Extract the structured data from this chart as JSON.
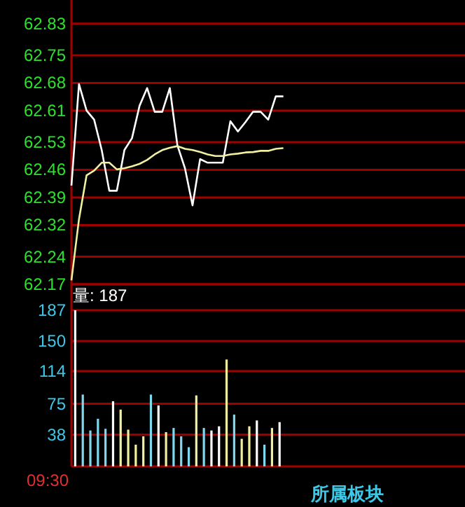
{
  "chart_data": [
    {
      "type": "line",
      "categories": [
        null,
        null,
        null,
        null,
        null,
        null,
        null,
        null,
        null,
        null,
        null,
        null,
        null,
        null,
        null,
        null,
        null,
        null,
        null,
        null,
        null,
        null,
        null,
        null,
        null,
        null,
        null,
        null,
        null,
        null,
        null,
        null,
        null,
        null,
        null,
        null,
        null,
        null,
        null,
        null,
        null,
        null,
        null,
        null,
        null,
        null,
        null,
        null,
        null,
        null,
        null,
        null,
        null
      ],
      "series": [
        {
          "color": "#ffffff",
          "values": [
            62.42,
            62.677,
            62.61,
            62.587,
            62.51,
            62.407,
            62.407,
            62.51,
            62.54,
            62.622,
            62.667,
            62.607,
            62.607,
            62.667,
            62.522,
            62.464,
            62.37,
            62.487,
            62.478,
            62.478,
            62.478,
            62.583,
            62.557,
            62.581,
            62.607,
            62.607,
            62.587,
            62.646,
            62.646,
            null,
            null,
            null,
            null,
            null,
            null,
            null,
            null,
            null,
            null,
            null,
            null,
            null,
            null,
            null,
            null,
            null,
            null,
            null,
            null,
            null,
            null,
            null,
            null
          ]
        },
        {
          "color": "#f0f0a0",
          "values": [
            62.18,
            62.335,
            62.446,
            62.458,
            62.478,
            62.478,
            62.461,
            62.464,
            62.469,
            62.475,
            62.485,
            62.499,
            62.51,
            62.516,
            62.52,
            62.513,
            62.51,
            62.505,
            62.499,
            62.495,
            62.495,
            62.499,
            62.501,
            62.504,
            62.505,
            62.508,
            62.508,
            62.513,
            62.515,
            null,
            null,
            null,
            null,
            null,
            null,
            null,
            null,
            null,
            null,
            null,
            null,
            null,
            null,
            null,
            null,
            null,
            null,
            null,
            null,
            null,
            null,
            null,
            null
          ]
        }
      ],
      "ylim": [
        62.17,
        62.89
      ],
      "yticks": [
        62.17,
        62.24,
        62.32,
        62.39,
        62.46,
        62.53,
        62.61,
        62.68,
        62.75,
        62.83
      ],
      "grid": "y"
    },
    {
      "type": "bar",
      "categories": [
        null,
        null,
        null,
        null,
        null,
        null,
        null,
        null,
        null,
        null,
        null,
        null,
        null,
        null,
        null,
        null,
        null,
        null,
        null,
        null,
        null,
        null,
        null,
        null,
        null,
        null,
        null,
        null,
        null,
        null,
        null,
        null,
        null,
        null,
        null,
        null,
        null,
        null,
        null,
        null,
        null,
        null,
        null,
        null,
        null,
        null,
        null,
        null,
        null,
        null,
        null,
        null
      ],
      "values": [
        187,
        86,
        43,
        57,
        45,
        78,
        68,
        44,
        26,
        36,
        86,
        73,
        41,
        46,
        36,
        23,
        85,
        46,
        43,
        48,
        128,
        62,
        33,
        48,
        55,
        26,
        46,
        53,
        null,
        null,
        null,
        null,
        null,
        null,
        null,
        null,
        null,
        null,
        null,
        null,
        null,
        null,
        null,
        null,
        null,
        null,
        null,
        null,
        null,
        null,
        null,
        null
      ],
      "colors": [
        "#ffffff",
        "#7fd8ec",
        "#7fd8ec",
        "#7fd8ec",
        "#7fd8ec",
        "#ffffff",
        "#f0f0a0",
        "#f0f0a0",
        "#f0f0a0",
        "#f0f0a0",
        "#7fd8ec",
        "#ffffff",
        "#f0f0a0",
        "#7fd8ec",
        "#7fd8ec",
        "#7fd8ec",
        "#f0f0a0",
        "#7fd8ec",
        "#ffffff",
        "#ffffff",
        "#f0f0a0",
        "#7fd8ec",
        "#f0f0a0",
        "#f0f0a0",
        "#ffffff",
        "#7fd8ec",
        "#f0f0a0",
        "#ffffff",
        null,
        null,
        null,
        null,
        null,
        null,
        null,
        null,
        null,
        null,
        null,
        null,
        null,
        null,
        null,
        null,
        null,
        null,
        null,
        null,
        null,
        null,
        null,
        null
      ],
      "ylim": [
        0,
        218
      ],
      "yticks": [
        38,
        75,
        114,
        150,
        187
      ],
      "grid": "y",
      "annotations": [
        "量: 187",
        "09:30",
        "所属板块"
      ]
    }
  ]
}
